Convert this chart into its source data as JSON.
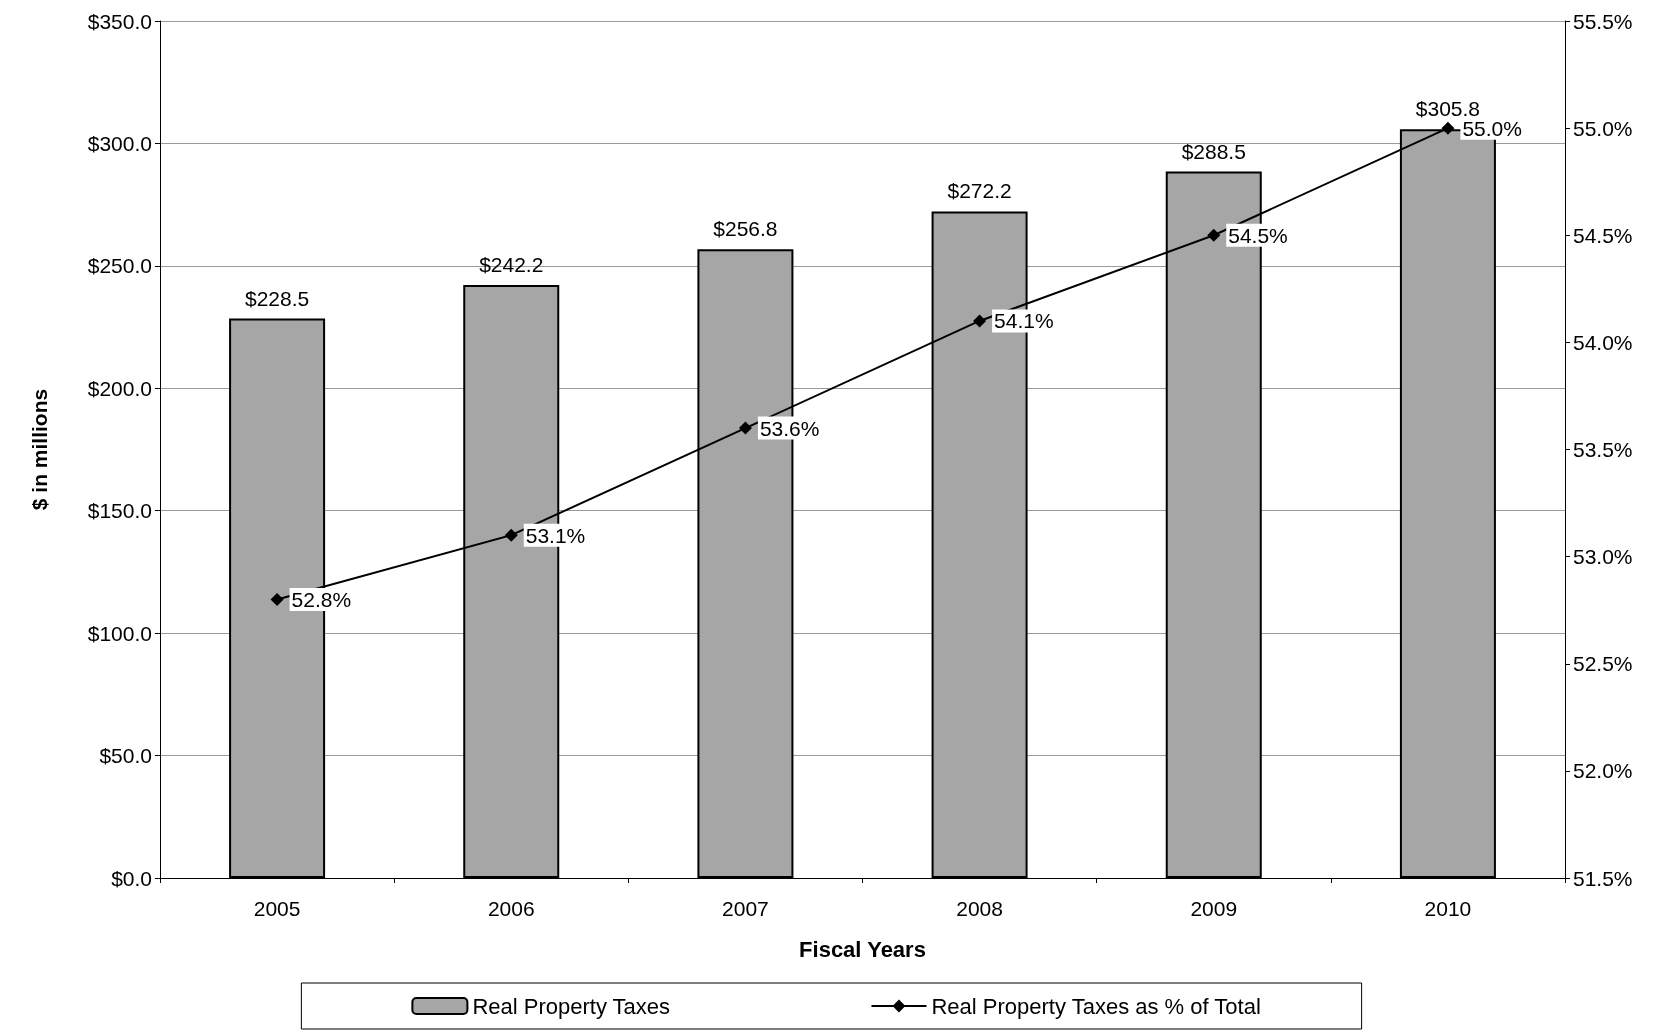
{
  "chart_data": {
    "type": "bar",
    "xlabel": "Fiscal Years",
    "ylabel": "$ in millions",
    "categories": [
      "2005",
      "2006",
      "2007",
      "2008",
      "2009",
      "2010"
    ],
    "series": [
      {
        "name": "Real Property Taxes",
        "color": "#a6a6a6",
        "values": [
          228.5,
          242.2,
          256.8,
          272.2,
          288.5,
          305.8
        ],
        "value_labels": [
          "$228.5",
          "$242.2",
          "$256.8",
          "$272.2",
          "$288.5",
          "$305.8"
        ]
      },
      {
        "name": "Real Property Taxes as % of Total",
        "type": "line",
        "axis": "y2",
        "color": "#000000",
        "marker": "diamond",
        "values": [
          52.8,
          53.1,
          53.6,
          54.1,
          54.5,
          55.0
        ],
        "value_labels": [
          "52.8%",
          "53.1%",
          "53.6%",
          "54.1%",
          "54.5%",
          "55.0%"
        ]
      }
    ],
    "ylim": [
      0,
      350
    ],
    "yticks": [
      {
        "value": 0,
        "label": "$0.0"
      },
      {
        "value": 50,
        "label": "$50.0"
      },
      {
        "value": 100,
        "label": "$100.0"
      },
      {
        "value": 150,
        "label": "$150.0"
      },
      {
        "value": 200,
        "label": "$200.0"
      },
      {
        "value": 250,
        "label": "$250.0"
      },
      {
        "value": 300,
        "label": "$300.0"
      },
      {
        "value": 350,
        "label": "$350.0"
      }
    ],
    "y2lim": [
      51.5,
      55.5
    ],
    "y2ticks": [
      {
        "value": 51.5,
        "label": "51.5%"
      },
      {
        "value": 52,
        "label": "52.0%"
      },
      {
        "value": 52.5,
        "label": "52.5%"
      },
      {
        "value": 53,
        "label": "53.0%"
      },
      {
        "value": 53.5,
        "label": "53.5%"
      },
      {
        "value": 54,
        "label": "54.0%"
      },
      {
        "value": 54.5,
        "label": "54.5%"
      },
      {
        "value": 55,
        "label": "55.0%"
      },
      {
        "value": 55.5,
        "label": "55.5%"
      }
    ],
    "grid": "y",
    "legend": "bottom"
  }
}
